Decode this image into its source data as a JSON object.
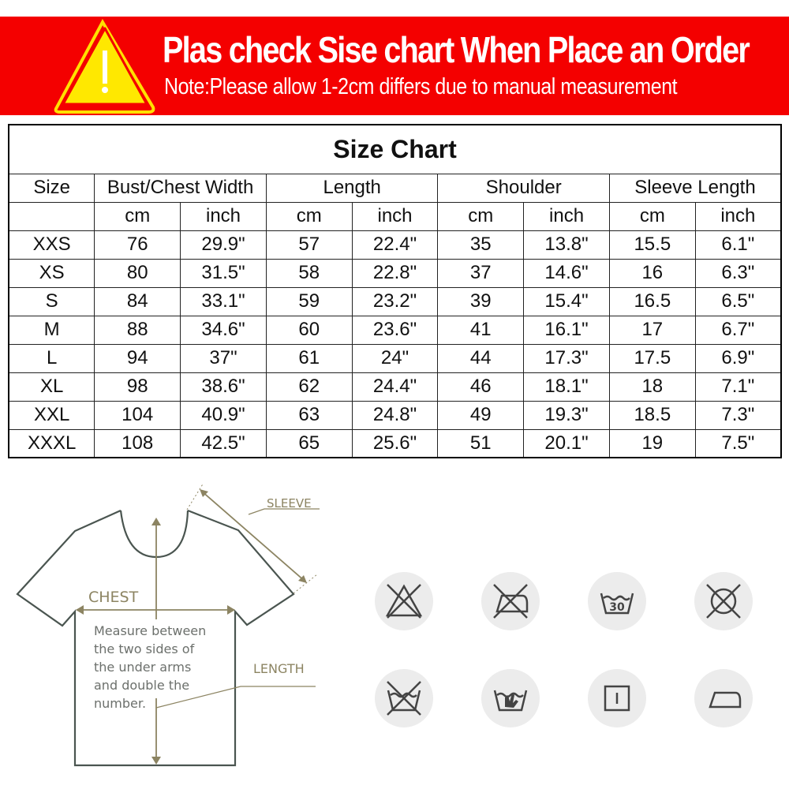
{
  "banner": {
    "title": "Plas check Sise chart When Place an Order",
    "note": "Note:Please allow 1-2cm differs due to manual measurement",
    "icon": "warning-triangle-icon",
    "color": "#f40000"
  },
  "table": {
    "title": "Size Chart",
    "headers": [
      "Size",
      "Bust/Chest Width",
      "Length",
      "Shoulder",
      "Sleeve Length"
    ],
    "units": [
      "",
      "cm",
      "inch",
      "cm",
      "inch",
      "cm",
      "inch",
      "cm",
      "inch"
    ],
    "rows": [
      [
        "XXS",
        "76",
        "29.9\"",
        "57",
        "22.4\"",
        "35",
        "13.8\"",
        "15.5",
        "6.1\""
      ],
      [
        "XS",
        "80",
        "31.5\"",
        "58",
        "22.8\"",
        "37",
        "14.6\"",
        "16",
        "6.3\""
      ],
      [
        "S",
        "84",
        "33.1\"",
        "59",
        "23.2\"",
        "39",
        "15.4\"",
        "16.5",
        "6.5\""
      ],
      [
        "M",
        "88",
        "34.6\"",
        "60",
        "23.6\"",
        "41",
        "16.1\"",
        "17",
        "6.7\""
      ],
      [
        "L",
        "94",
        "37\"",
        "61",
        "24\"",
        "44",
        "17.3\"",
        "17.5",
        "6.9\""
      ],
      [
        "XL",
        "98",
        "38.6\"",
        "62",
        "24.4\"",
        "46",
        "18.1\"",
        "18",
        "7.1\""
      ],
      [
        "XXL",
        "104",
        "40.9\"",
        "63",
        "24.8\"",
        "49",
        "19.3\"",
        "18.5",
        "7.3\""
      ],
      [
        "XXXL",
        "108",
        "42.5\"",
        "65",
        "25.6\"",
        "51",
        "20.1\"",
        "19",
        "7.5\""
      ]
    ]
  },
  "diagram": {
    "sleeve": "SLEEVE",
    "chest": "CHEST",
    "length": "LENGTH",
    "instructions": [
      "Measure between",
      "the two sides of",
      "the under arms",
      "and double the",
      "number."
    ]
  },
  "care_icons": [
    "do-not-bleach-icon",
    "do-not-iron-icon",
    "wash-30-icon",
    "do-not-dry-clean-icon",
    "do-not-wash-icon",
    "hand-wash-icon",
    "tumble-dry-icon",
    "iron-low-icon"
  ],
  "care_text": {
    "wash_temp": "30"
  }
}
